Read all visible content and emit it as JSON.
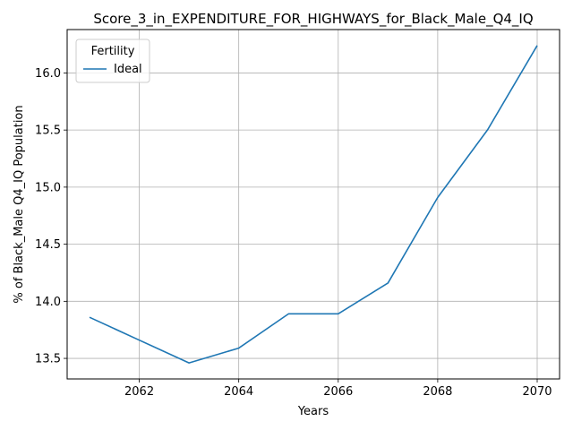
{
  "chart_data": {
    "type": "line",
    "title": "Score_3_in_EXPENDITURE_FOR_HIGHWAYS_for_Black_Male_Q4_IQ",
    "xlabel": "Years",
    "ylabel": "% of Black_Male Q4_IQ Population",
    "x": [
      2061,
      2062,
      2063,
      2064,
      2065,
      2066,
      2067,
      2068,
      2069,
      2070
    ],
    "series": [
      {
        "name": "Ideal",
        "values": [
          13.86,
          13.66,
          13.46,
          13.59,
          13.89,
          13.89,
          14.16,
          14.91,
          15.5,
          16.24
        ],
        "color": "#1f77b4"
      }
    ],
    "xlim": [
      2060.55,
      2070.45
    ],
    "ylim": [
      13.32,
      16.38
    ],
    "xticks": [
      2062,
      2064,
      2066,
      2068,
      2070
    ],
    "yticks": [
      13.5,
      14.0,
      14.5,
      15.0,
      15.5,
      16.0
    ],
    "ytick_labels": [
      "13.5",
      "14.0",
      "14.5",
      "15.0",
      "15.5",
      "16.0"
    ],
    "grid": true,
    "legend": {
      "title": "Fertility",
      "placement": "top-left"
    }
  }
}
